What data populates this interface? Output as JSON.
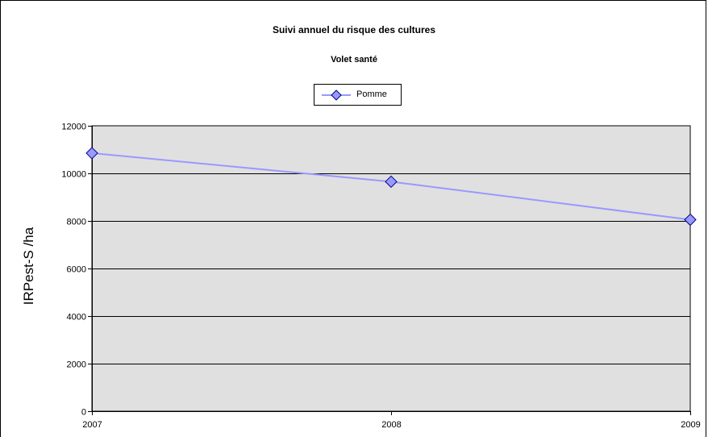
{
  "chart_data": {
    "type": "line",
    "title": "Suivi annuel du risque des cultures",
    "subtitle": "Volet santé",
    "xlabel": "",
    "ylabel": "IRPest-S /ha",
    "x": [
      "2007",
      "2008",
      "2009"
    ],
    "series": [
      {
        "name": "Pomme",
        "values": [
          10850,
          9650,
          8050
        ],
        "color": "#9999ff",
        "marker": "diamond"
      }
    ],
    "ylim": [
      0,
      12000
    ],
    "yticks": [
      0,
      2000,
      4000,
      6000,
      8000,
      10000,
      12000
    ],
    "grid": true,
    "plot_background": "#e0e0e0",
    "legend_position": "top-center"
  }
}
